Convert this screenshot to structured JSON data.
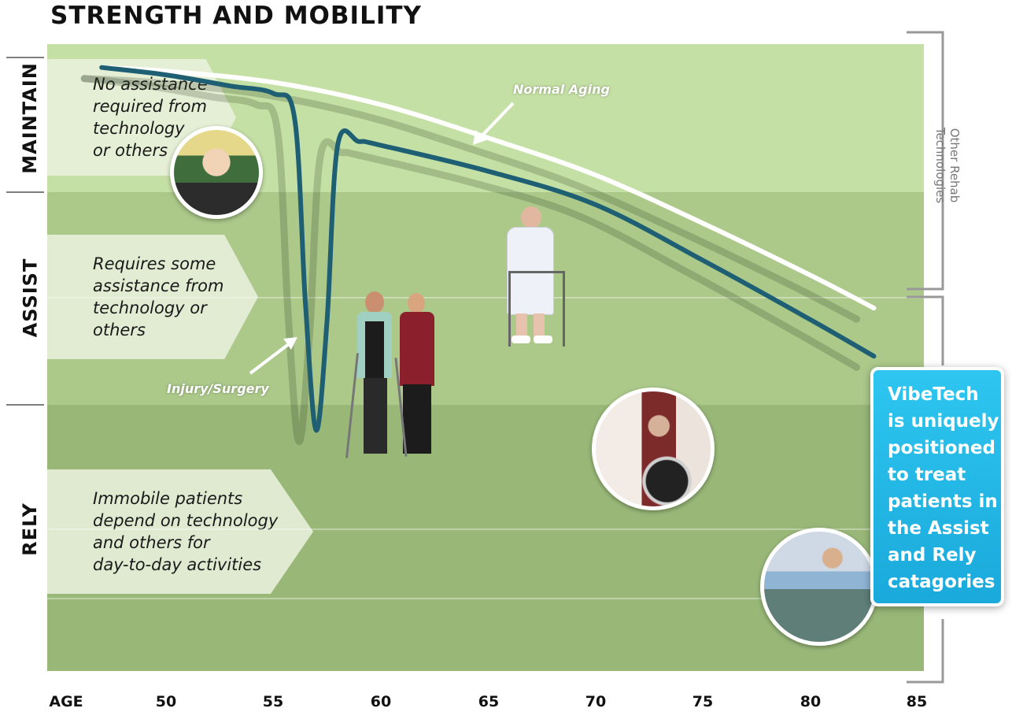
{
  "title": "STRENGTH AND MOBILITY",
  "bands": [
    {
      "label": "MAINTAIN",
      "text": [
        "No assistance",
        "required from",
        "technology",
        "or others"
      ],
      "color": "#c5e0a5"
    },
    {
      "label": "ASSIST",
      "text": [
        "Requires some",
        "assistance from",
        "technology or",
        "others"
      ],
      "color": "#acc98a"
    },
    {
      "label": "RELY",
      "text": [
        "Immobile patients",
        "depend on technology",
        "and others for",
        "day-to-day activities"
      ],
      "color": "#99b878"
    }
  ],
  "annotations": {
    "normal_aging": "Normal Aging",
    "injury": "Injury/Surgery",
    "other_rehab": [
      "Other Rehab",
      "Technologies"
    ]
  },
  "callout": [
    "VibeTech",
    "is uniquely",
    "positioned",
    "to treat",
    "patients in",
    "the Assist",
    "and Rely",
    "catagories"
  ],
  "photos": [
    "woman-tennis-photo",
    "caregiver-walking-photo",
    "walker-patient-photo",
    "wheelchair-photo",
    "hospital-bed-photo"
  ],
  "colors": {
    "normal_aging_line": "#ffffff",
    "injury_line": "#1f5f73",
    "callout": "#22bbe8"
  },
  "chart_data": {
    "type": "line",
    "title": "STRENGTH AND MOBILITY",
    "xlabel": "AGE",
    "ylabel": "",
    "xticks": [
      50,
      55,
      60,
      65,
      70,
      75,
      80,
      85
    ],
    "xlim": [
      44,
      85
    ],
    "ylim": [
      0,
      100
    ],
    "y_categories": [
      "RELY",
      "ASSIST",
      "MAINTAIN"
    ],
    "grid": false,
    "series": [
      {
        "name": "Normal Aging",
        "x": [
          47,
          50,
          55,
          60,
          65,
          70,
          75,
          80,
          83
        ],
        "y": [
          99,
          98,
          95,
          89,
          80,
          70,
          57,
          43,
          34
        ]
      },
      {
        "name": "Injury/Surgery",
        "x": [
          47,
          50,
          53,
          55,
          56,
          56.5,
          57,
          57.5,
          58,
          59,
          60,
          65,
          70,
          75,
          80,
          83
        ],
        "y": [
          99,
          97,
          94,
          92,
          85,
          35,
          1,
          30,
          78,
          79,
          78,
          71,
          62,
          47,
          31,
          21
        ]
      }
    ]
  }
}
